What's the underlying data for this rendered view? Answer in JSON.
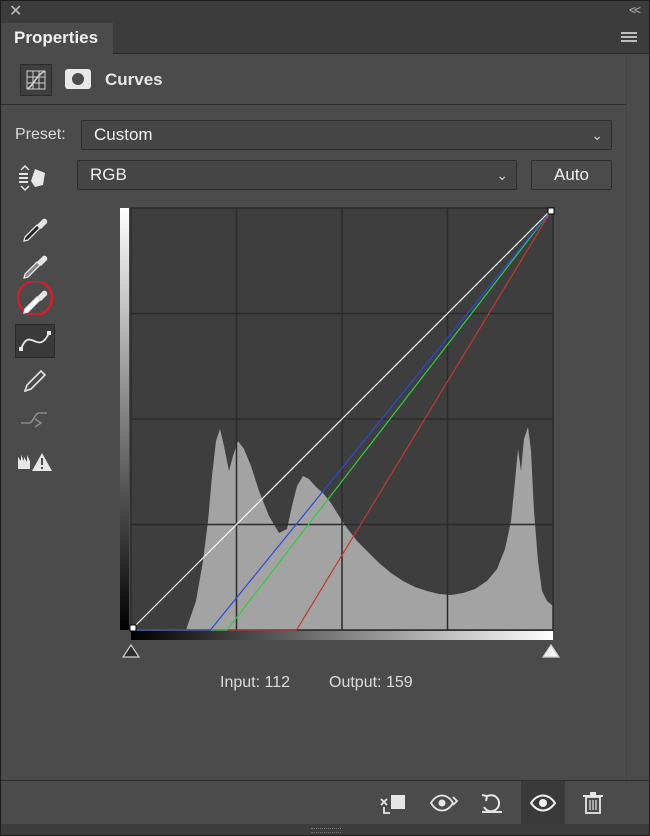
{
  "window": {
    "close_icon": "close-icon",
    "collapse_label": "<<"
  },
  "tab": {
    "label": "Properties"
  },
  "header": {
    "title": "Curves",
    "icons": [
      "curves-adjustment-icon",
      "mask-icon"
    ]
  },
  "preset": {
    "label": "Preset:",
    "value": "Custom"
  },
  "channel": {
    "value": "RGB",
    "auto_label": "Auto"
  },
  "tools": [
    "targeted-adjustment-icon",
    "black-point-eyedropper-icon",
    "gray-point-eyedropper-icon",
    "white-point-eyedropper-icon",
    "curve-points-icon",
    "pencil-icon",
    "smooth-icon",
    "clipping-warning-icon"
  ],
  "readout": {
    "input_label": "Input:",
    "input_value": "112",
    "output_label": "Output:",
    "output_value": "159"
  },
  "curves": {
    "rgb": [
      [
        0,
        0
      ],
      [
        255,
        255
      ]
    ],
    "blue": [
      [
        0,
        0
      ],
      [
        48,
        0
      ],
      [
        255,
        255
      ]
    ],
    "green": [
      [
        0,
        0
      ],
      [
        58,
        0
      ],
      [
        255,
        255
      ]
    ],
    "red": [
      [
        0,
        0
      ],
      [
        100,
        0
      ],
      [
        255,
        255
      ]
    ]
  },
  "colors": {
    "rgb_curve": "#ffffff",
    "red_curve": "#c0392b",
    "green_curve": "#2ecc40",
    "blue_curve": "#2b4bd6",
    "highlight_ring": "#d0202a",
    "panel": "#4b4b4b"
  },
  "bottom_icons": [
    "clip-to-layer-icon",
    "view-previous-state-icon",
    "reset-icon",
    "visibility-icon",
    "delete-icon"
  ]
}
